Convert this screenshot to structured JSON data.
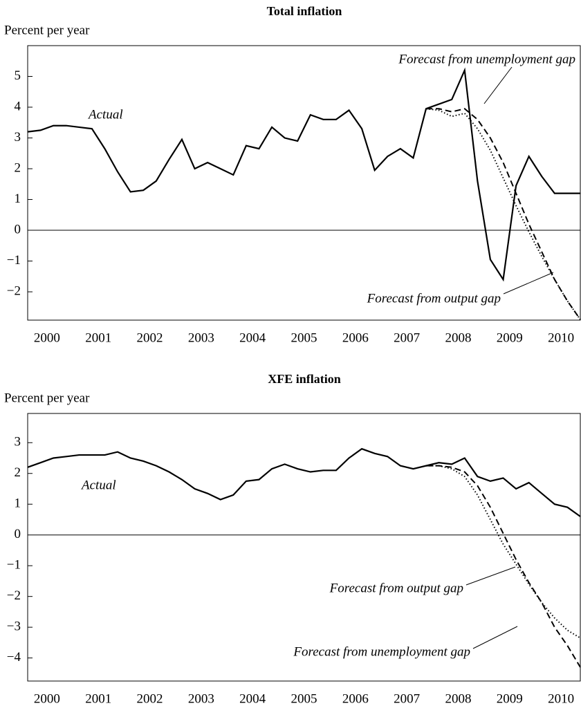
{
  "chart_data": [
    {
      "type": "line",
      "title": "Total inflation",
      "ylabel": "Percent per year",
      "x": [
        2000.125,
        2000.375,
        2000.625,
        2000.875,
        2001.125,
        2001.375,
        2001.625,
        2001.875,
        2002.125,
        2002.375,
        2002.625,
        2002.875,
        2003.125,
        2003.375,
        2003.625,
        2003.875,
        2004.125,
        2004.375,
        2004.625,
        2004.875,
        2005.125,
        2005.375,
        2005.625,
        2005.875,
        2006.125,
        2006.375,
        2006.625,
        2006.875,
        2007.125,
        2007.375,
        2007.625,
        2007.875,
        2008.125,
        2008.375,
        2008.625,
        2008.875,
        2009.125,
        2009.375,
        2009.625,
        2009.875,
        2010.125,
        2010.375,
        2010.625,
        2010.875
      ],
      "series": [
        {
          "name": "Actual",
          "color": "#000000",
          "dash": "solid",
          "values": [
            3.2,
            3.25,
            3.4,
            3.4,
            3.35,
            3.3,
            2.65,
            1.9,
            1.25,
            1.3,
            1.6,
            2.3,
            2.95,
            2.0,
            2.2,
            2.0,
            1.8,
            2.75,
            2.65,
            3.35,
            3.0,
            2.9,
            3.75,
            3.6,
            3.6,
            3.9,
            3.3,
            1.95,
            2.4,
            2.65,
            2.35,
            3.95,
            4.1,
            4.25,
            5.2,
            1.6,
            -0.95,
            -1.6,
            1.45,
            2.4,
            1.75,
            1.2,
            1.2,
            1.2
          ]
        },
        {
          "name": "Forecast from unemployment gap",
          "color": "#000000",
          "dash": "dashed",
          "values": [
            null,
            null,
            null,
            null,
            null,
            null,
            null,
            null,
            null,
            null,
            null,
            null,
            null,
            null,
            null,
            null,
            null,
            null,
            null,
            null,
            null,
            null,
            null,
            null,
            null,
            null,
            null,
            null,
            null,
            null,
            null,
            3.95,
            3.95,
            3.85,
            3.95,
            3.6,
            3.0,
            2.2,
            1.2,
            0.2,
            -0.7,
            -1.6,
            -2.3,
            -2.9
          ]
        },
        {
          "name": "Forecast from output gap",
          "color": "#000000",
          "dash": "dotted",
          "values": [
            null,
            null,
            null,
            null,
            null,
            null,
            null,
            null,
            null,
            null,
            null,
            null,
            null,
            null,
            null,
            null,
            null,
            null,
            null,
            null,
            null,
            null,
            null,
            null,
            null,
            null,
            null,
            null,
            null,
            null,
            null,
            3.95,
            3.9,
            3.7,
            3.8,
            3.3,
            2.6,
            1.7,
            0.8,
            -0.05,
            -0.85,
            -1.6,
            -2.3,
            -2.9
          ]
        }
      ],
      "xlim": [
        2000.125,
        2010.875
      ],
      "xticks": [
        {
          "value": 2000.5,
          "label": "2000"
        },
        {
          "value": 2001.5,
          "label": "2001"
        },
        {
          "value": 2002.5,
          "label": "2002"
        },
        {
          "value": 2003.5,
          "label": "2003"
        },
        {
          "value": 2004.5,
          "label": "2004"
        },
        {
          "value": 2005.5,
          "label": "2005"
        },
        {
          "value": 2006.5,
          "label": "2006"
        },
        {
          "value": 2007.5,
          "label": "2007"
        },
        {
          "value": 2008.5,
          "label": "2008"
        },
        {
          "value": 2009.5,
          "label": "2009"
        },
        {
          "value": 2010.5,
          "label": "2010"
        }
      ],
      "ylim": [
        -2.92,
        6
      ],
      "yticks": [
        {
          "value": -2,
          "label": "−2"
        },
        {
          "value": -1,
          "label": "−1"
        },
        0,
        1,
        2,
        3,
        4,
        5
      ]
    },
    {
      "type": "line",
      "title": "XFE inflation",
      "ylabel": "Percent per year",
      "x": [
        2000.125,
        2000.375,
        2000.625,
        2000.875,
        2001.125,
        2001.375,
        2001.625,
        2001.875,
        2002.125,
        2002.375,
        2002.625,
        2002.875,
        2003.125,
        2003.375,
        2003.625,
        2003.875,
        2004.125,
        2004.375,
        2004.625,
        2004.875,
        2005.125,
        2005.375,
        2005.625,
        2005.875,
        2006.125,
        2006.375,
        2006.625,
        2006.875,
        2007.125,
        2007.375,
        2007.625,
        2007.875,
        2008.125,
        2008.375,
        2008.625,
        2008.875,
        2009.125,
        2009.375,
        2009.625,
        2009.875,
        2010.125,
        2010.375,
        2010.625,
        2010.875
      ],
      "series": [
        {
          "name": "Actual",
          "color": "#000000",
          "dash": "solid",
          "values": [
            2.2,
            2.35,
            2.5,
            2.55,
            2.6,
            2.6,
            2.6,
            2.7,
            2.5,
            2.4,
            2.25,
            2.05,
            1.8,
            1.5,
            1.35,
            1.15,
            1.3,
            1.75,
            1.8,
            2.15,
            2.3,
            2.15,
            2.05,
            2.1,
            2.1,
            2.5,
            2.8,
            2.65,
            2.55,
            2.25,
            2.15,
            2.25,
            2.35,
            2.3,
            2.5,
            1.9,
            1.75,
            1.85,
            1.5,
            1.7,
            1.35,
            1.0,
            0.9,
            0.6
          ]
        },
        {
          "name": "Forecast from unemployment gap",
          "color": "#000000",
          "dash": "dashed",
          "values": [
            null,
            null,
            null,
            null,
            null,
            null,
            null,
            null,
            null,
            null,
            null,
            null,
            null,
            null,
            null,
            null,
            null,
            null,
            null,
            null,
            null,
            null,
            null,
            null,
            null,
            null,
            null,
            null,
            null,
            null,
            null,
            2.25,
            2.25,
            2.2,
            2.05,
            1.6,
            0.9,
            0.05,
            -0.8,
            -1.55,
            -2.2,
            -3.0,
            -3.6,
            -4.3
          ]
        },
        {
          "name": "Forecast from output gap",
          "color": "#000000",
          "dash": "dotted",
          "values": [
            null,
            null,
            null,
            null,
            null,
            null,
            null,
            null,
            null,
            null,
            null,
            null,
            null,
            null,
            null,
            null,
            null,
            null,
            null,
            null,
            null,
            null,
            null,
            null,
            null,
            null,
            null,
            null,
            null,
            null,
            null,
            2.25,
            2.25,
            2.15,
            1.9,
            1.3,
            0.5,
            -0.3,
            -0.95,
            -1.6,
            -2.2,
            -2.7,
            -3.1,
            -3.35
          ]
        }
      ],
      "xlim": [
        2000.125,
        2010.875
      ],
      "xticks": [
        {
          "value": 2000.5,
          "label": "2000"
        },
        {
          "value": 2001.5,
          "label": "2001"
        },
        {
          "value": 2002.5,
          "label": "2002"
        },
        {
          "value": 2003.5,
          "label": "2003"
        },
        {
          "value": 2004.5,
          "label": "2004"
        },
        {
          "value": 2005.5,
          "label": "2005"
        },
        {
          "value": 2006.5,
          "label": "2006"
        },
        {
          "value": 2007.5,
          "label": "2007"
        },
        {
          "value": 2008.5,
          "label": "2008"
        },
        {
          "value": 2009.5,
          "label": "2009"
        },
        {
          "value": 2010.5,
          "label": "2010"
        }
      ],
      "ylim": [
        -4.75,
        3.95
      ],
      "yticks": [
        {
          "value": -4,
          "label": "−4"
        },
        {
          "value": -3,
          "label": "−3"
        },
        {
          "value": -2,
          "label": "−2"
        },
        {
          "value": -1,
          "label": "−1"
        },
        0,
        1,
        2,
        3
      ]
    }
  ]
}
